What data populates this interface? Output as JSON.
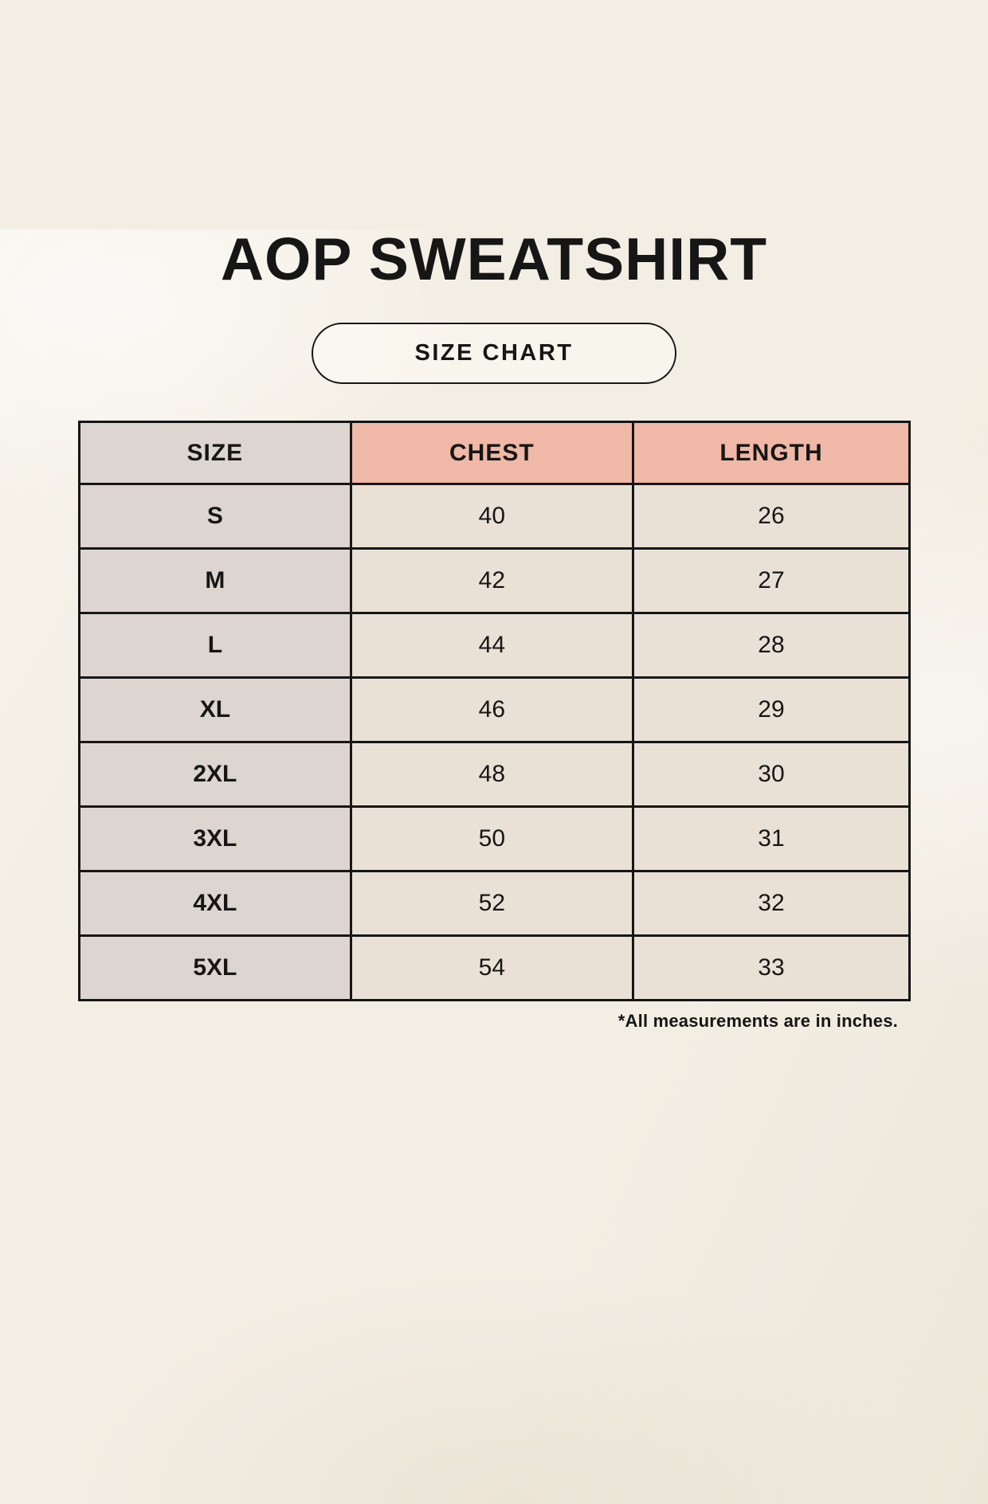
{
  "page_title": "AOP SWEATSHIRT",
  "size_chart_badge": "SIZE CHART",
  "footnote": "*All measurements are in inches.",
  "colors": {
    "background": "#f3eee3",
    "text": "#161616",
    "border": "#161616",
    "header_size_bg": "#ddd6d0",
    "header_measure_bg": "#f0b8a6",
    "size_col_bg": "#ddd6d0",
    "value_cell_bg": "#e9e1d5"
  },
  "chart_data": {
    "type": "table",
    "title": "AOP SWEATSHIRT",
    "subtitle": "SIZE CHART",
    "columns": [
      "SIZE",
      "CHEST",
      "LENGTH"
    ],
    "rows": [
      [
        "S",
        "40",
        "26"
      ],
      [
        "M",
        "42",
        "27"
      ],
      [
        "L",
        "44",
        "28"
      ],
      [
        "XL",
        "46",
        "29"
      ],
      [
        "2XL",
        "48",
        "30"
      ],
      [
        "3XL",
        "50",
        "31"
      ],
      [
        "4XL",
        "52",
        "32"
      ],
      [
        "5XL",
        "54",
        "33"
      ]
    ],
    "units_note": "*All measurements are in inches.",
    "units": "inches"
  }
}
